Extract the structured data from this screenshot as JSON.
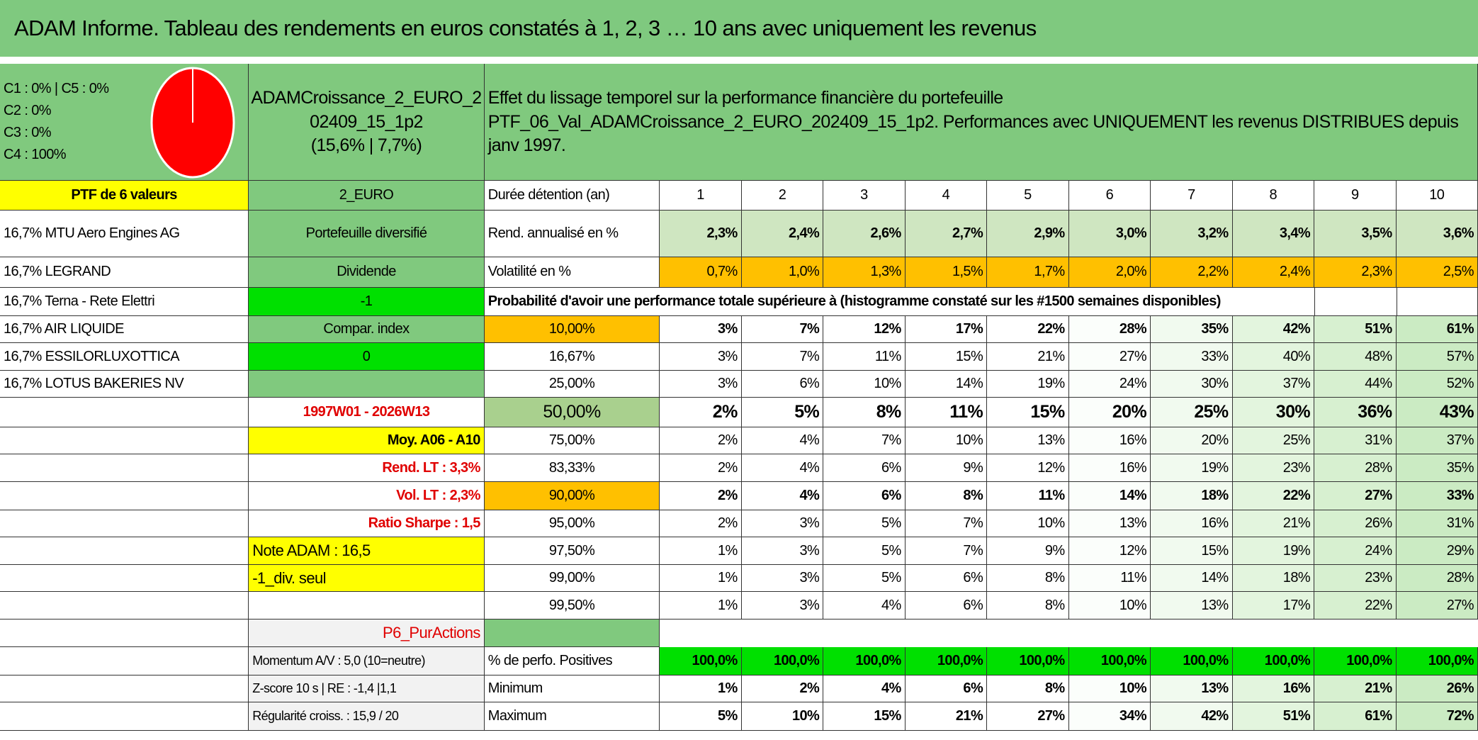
{
  "header": {
    "title": "ADAM Informe. Tableau des rendements en euros constatés à 1, 2, 3 … 10 ans avec uniquement les revenus"
  },
  "summary": {
    "pie_legend": [
      "C1 : 0% | C5 : 0%",
      "C2 : 0%",
      "C3 : 0%",
      "C4 : 100%"
    ],
    "portfolio": [
      "ADAMCroissance_2_EURO_2",
      "02409_15_1p2",
      "(15,6% | 7,7%)"
    ],
    "description": [
      "Effet du lissage temporel sur la performance financière du portefeuille",
      "PTF_06_Val_ADAMCroissance_2_EURO_202409_15_1p2. Performances avec UNIQUEMENT les revenus DISTRIBUES depuis",
      "janv 1997."
    ]
  },
  "holdings": {
    "header": "PTF de 6 valeurs",
    "items": [
      "16,7% MTU Aero Engines AG",
      "16,7% LEGRAND",
      "16,7% Terna - Rete Elettri",
      "16,7% AIR LIQUIDE",
      "16,7% ESSILORLUXOTTICA",
      "16,7% LOTUS BAKERIES NV"
    ]
  },
  "side": {
    "labels": [
      "2_EURO",
      "Portefeuille diversifié",
      "Dividende",
      "-1",
      "Compar. index",
      "0",
      "1997W01 - 2026W13",
      "Moy. A06 - A10",
      "Rend. LT : 3,3%",
      "Vol. LT : 2,3%",
      "Ratio Sharpe : 1,5",
      "Note ADAM : 16,5",
      "-1_div. seul",
      "P6_PurActions",
      "Momentum A/V : 5,0 (10=neutre)",
      "Z-score 10 s | RE : -1,4 |1,1",
      "Régularité croiss. : 15,9 / 20"
    ]
  },
  "table": {
    "probability_note": "Probabilité d'avoir une performance totale supérieure à (histogramme constaté sur les #1500 semaines disponibles)",
    "rows": [
      {
        "label": "Durée détention (an)",
        "cells": [
          "1",
          "2",
          "3",
          "4",
          "5",
          "6",
          "7",
          "8",
          "9",
          "10"
        ]
      },
      {
        "label": "Rend. annualisé en %",
        "cells": [
          "2,3%",
          "2,4%",
          "2,6%",
          "2,7%",
          "2,9%",
          "3,0%",
          "3,2%",
          "3,4%",
          "3,5%",
          "3,6%"
        ]
      },
      {
        "label": "Volatilité en %",
        "cells": [
          "0,7%",
          "1,0%",
          "1,3%",
          "1,5%",
          "1,7%",
          "2,0%",
          "2,2%",
          "2,4%",
          "2,3%",
          "2,5%"
        ]
      },
      {
        "label": "10,00%",
        "cells": [
          "3%",
          "7%",
          "12%",
          "17%",
          "22%",
          "28%",
          "35%",
          "42%",
          "51%",
          "61%"
        ]
      },
      {
        "label": "16,67%",
        "cells": [
          "3%",
          "7%",
          "11%",
          "15%",
          "21%",
          "27%",
          "33%",
          "40%",
          "48%",
          "57%"
        ]
      },
      {
        "label": "25,00%",
        "cells": [
          "3%",
          "6%",
          "10%",
          "14%",
          "19%",
          "24%",
          "30%",
          "37%",
          "44%",
          "52%"
        ]
      },
      {
        "label": "50,00%",
        "cells": [
          "2%",
          "5%",
          "8%",
          "11%",
          "15%",
          "20%",
          "25%",
          "30%",
          "36%",
          "43%"
        ]
      },
      {
        "label": "75,00%",
        "cells": [
          "2%",
          "4%",
          "7%",
          "10%",
          "13%",
          "16%",
          "20%",
          "25%",
          "31%",
          "37%"
        ]
      },
      {
        "label": "83,33%",
        "cells": [
          "2%",
          "4%",
          "6%",
          "9%",
          "12%",
          "16%",
          "19%",
          "23%",
          "28%",
          "35%"
        ]
      },
      {
        "label": "90,00%",
        "cells": [
          "2%",
          "4%",
          "6%",
          "8%",
          "11%",
          "14%",
          "18%",
          "22%",
          "27%",
          "33%"
        ]
      },
      {
        "label": "95,00%",
        "cells": [
          "2%",
          "3%",
          "5%",
          "7%",
          "10%",
          "13%",
          "16%",
          "21%",
          "26%",
          "31%"
        ]
      },
      {
        "label": "97,50%",
        "cells": [
          "1%",
          "3%",
          "5%",
          "7%",
          "9%",
          "12%",
          "15%",
          "19%",
          "24%",
          "29%"
        ]
      },
      {
        "label": "99,00%",
        "cells": [
          "1%",
          "3%",
          "5%",
          "6%",
          "8%",
          "11%",
          "14%",
          "18%",
          "23%",
          "28%"
        ]
      },
      {
        "label": "99,50%",
        "cells": [
          "1%",
          "3%",
          "4%",
          "6%",
          "8%",
          "10%",
          "13%",
          "17%",
          "22%",
          "27%"
        ]
      },
      {
        "label": "% de perfo. Positives",
        "cells": [
          "100,0%",
          "100,0%",
          "100,0%",
          "100,0%",
          "100,0%",
          "100,0%",
          "100,0%",
          "100,0%",
          "100,0%",
          "100,0%"
        ]
      },
      {
        "label": "Minimum",
        "cells": [
          "1%",
          "2%",
          "4%",
          "6%",
          "8%",
          "10%",
          "13%",
          "16%",
          "21%",
          "26%"
        ]
      },
      {
        "label": "Maximum",
        "cells": [
          "5%",
          "10%",
          "15%",
          "21%",
          "27%",
          "34%",
          "42%",
          "51%",
          "61%",
          "72%"
        ]
      }
    ]
  }
}
